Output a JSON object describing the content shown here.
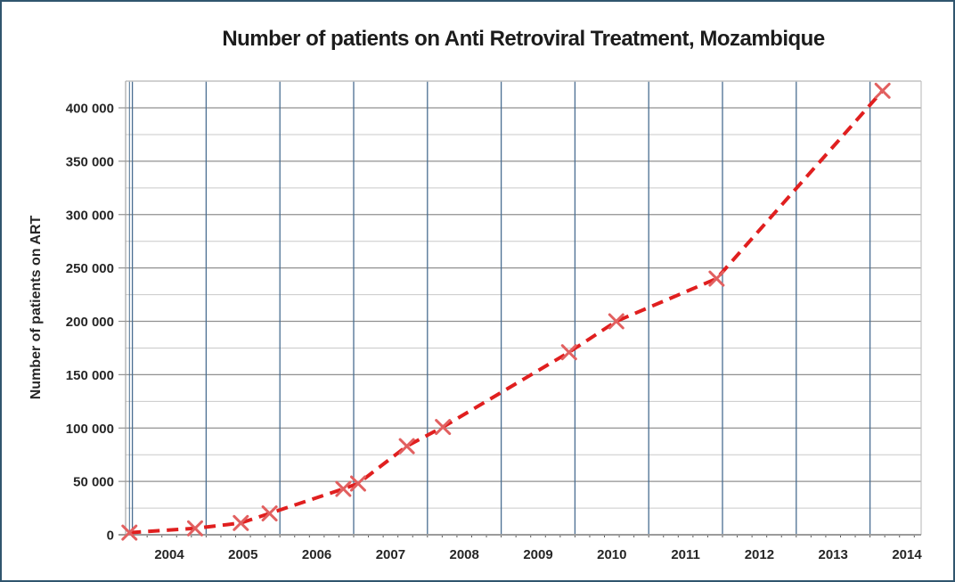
{
  "chart_data": {
    "type": "line",
    "title": "Number of patients on Anti Retroviral Treatment, Mozambique",
    "xlabel": "",
    "ylabel": "Number of patients on ART",
    "x_range": [
      2003.9,
      2014.7
    ],
    "ylim": [
      0,
      425000
    ],
    "y_major_step": 50000,
    "y_minor_step": 25000,
    "grid": true,
    "legend_position": "none",
    "x_tick_labels": [
      "2004",
      "2005",
      "2006",
      "2007",
      "2008",
      "2009",
      "2010",
      "2011",
      "2012",
      "2013",
      "2014"
    ],
    "y_tick_labels": [
      "0",
      "50 000",
      "100 000",
      "150 000",
      "200 000",
      "250 000",
      "300 000",
      "350 000",
      "400 000"
    ],
    "series": [
      {
        "line_style": "dashed",
        "marker": "x",
        "points": [
          {
            "x": 2003.96,
            "y": 2000
          },
          {
            "x": 2004.85,
            "y": 6000
          },
          {
            "x": 2005.47,
            "y": 11000
          },
          {
            "x": 2005.86,
            "y": 20000
          },
          {
            "x": 2006.86,
            "y": 43000
          },
          {
            "x": 2007.06,
            "y": 48000
          },
          {
            "x": 2007.72,
            "y": 83000
          },
          {
            "x": 2008.21,
            "y": 101000
          },
          {
            "x": 2009.92,
            "y": 171000
          },
          {
            "x": 2010.56,
            "y": 200000
          },
          {
            "x": 2011.92,
            "y": 240000
          },
          {
            "x": 2014.17,
            "y": 416000
          }
        ]
      }
    ]
  },
  "colors": {
    "line": "#e01f1f",
    "marker": "#e26060",
    "vertical_grid": "#4a6e91",
    "major_grid": "#909090",
    "minor_grid": "#c9c9c9",
    "axis_line": "#9b9b9b",
    "plot_border": "#c2c2c2",
    "tick": "#595959",
    "frame": "#30556e",
    "text": "#262626",
    "title_text": "#1c1c1c"
  }
}
